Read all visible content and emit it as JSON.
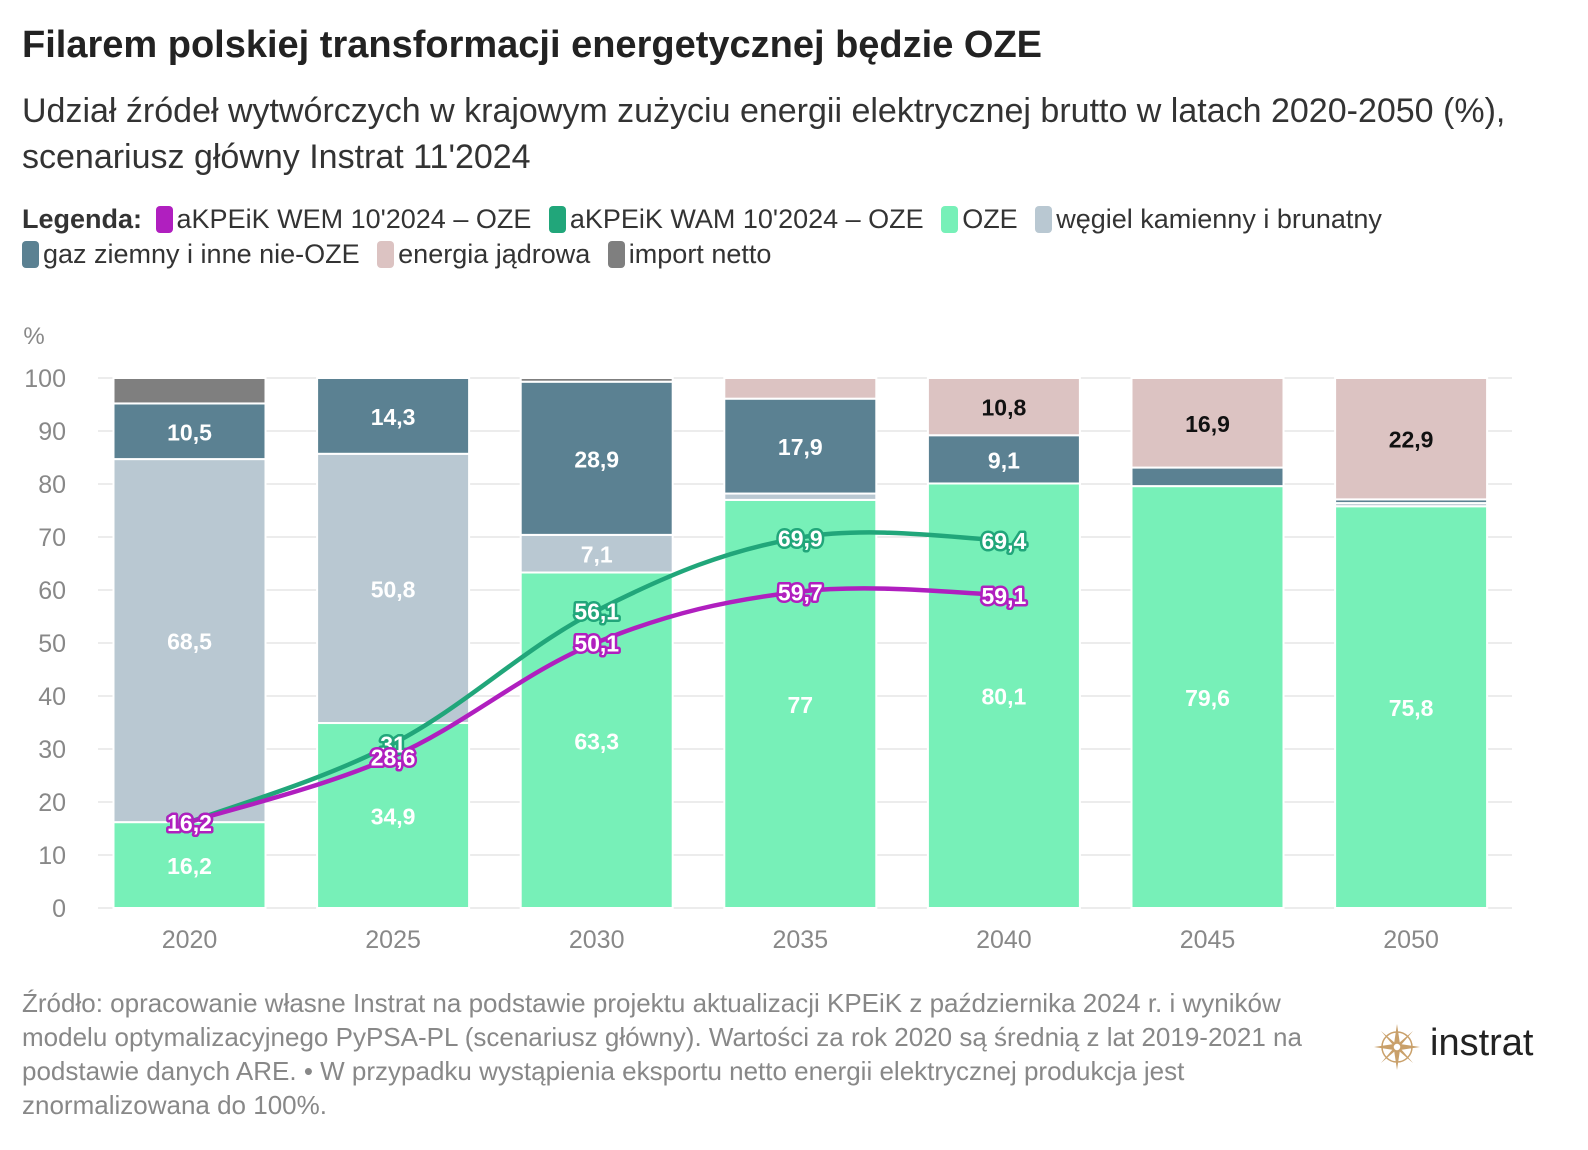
{
  "title": "Filarem polskiej transformacji energetycznej będzie OZE",
  "subtitle": "Udział źródeł wytwórczych w krajowym zużyciu energii elektrycznej brutto w latach 2020-2050 (%), scenariusz główny Instrat 11'2024",
  "legend": {
    "title": "Legenda:",
    "items": [
      {
        "label": "aKPEiK WEM 10'2024 – OZE",
        "color": "#b01fbf"
      },
      {
        "label": "aKPEiK WAM 10'2024 – OZE",
        "color": "#21a67a"
      },
      {
        "label": "OZE",
        "color": "#77f0b8"
      },
      {
        "label": "węgiel kamienny i brunatny",
        "color": "#b9c8d2"
      },
      {
        "label": "gaz ziemny i inne nie-OZE",
        "color": "#5b8192"
      },
      {
        "label": "energia jądrowa",
        "color": "#dcc3c2"
      },
      {
        "label": "import netto",
        "color": "#7f7f7f"
      }
    ]
  },
  "source": "Źródło: opracowanie własne Instrat na podstawie projektu aktualizacji KPEiK z października 2024 r. i wyników modelu optymalizacyjnego PyPSA-PL (scenariusz główny). Wartości za rok 2020 są średnią z lat 2019-2021 na podstawie danych ARE. • W przypadku wystąpienia eksportu netto energii elektrycznej produkcja jest znormalizowana do 100%.",
  "logo": {
    "text": "instrat",
    "icon": "compass-rose-icon"
  },
  "chart_data": {
    "type": "bar",
    "stacked": true,
    "ylabel": "%",
    "ylim": [
      0,
      100
    ],
    "yticks": [
      0,
      10,
      20,
      30,
      40,
      50,
      60,
      70,
      80,
      90,
      100
    ],
    "grid": true,
    "categories": [
      "2020",
      "2025",
      "2030",
      "2035",
      "2040",
      "2045",
      "2050"
    ],
    "series": [
      {
        "name": "OZE",
        "color": "#77f0b8",
        "label_color": "#ffffff",
        "values": [
          16.2,
          34.9,
          63.3,
          77,
          80.1,
          79.6,
          75.8
        ],
        "labels": [
          "16,2",
          "34,9",
          "63,3",
          "77",
          "80,1",
          "79,6",
          "75,8"
        ]
      },
      {
        "name": "węgiel kamienny i brunatny",
        "color": "#b9c8d2",
        "label_color": "#ffffff",
        "values": [
          68.5,
          50.8,
          7.1,
          1.2,
          0,
          0,
          0.6
        ],
        "labels": [
          "68,5",
          "50,8",
          "7,1",
          "",
          "",
          "",
          ""
        ]
      },
      {
        "name": "gaz ziemny i inne nie-OZE",
        "color": "#5b8192",
        "label_color": "#ffffff",
        "values": [
          10.5,
          14.3,
          28.9,
          17.9,
          9.1,
          3.5,
          0.7
        ],
        "labels": [
          "10,5",
          "14,3",
          "28,9",
          "17,9",
          "9,1",
          "",
          ""
        ]
      },
      {
        "name": "energia jądrowa",
        "color": "#dcc3c2",
        "label_color": "#111111",
        "values": [
          0,
          0,
          0,
          3.9,
          10.8,
          16.9,
          22.9
        ],
        "labels": [
          "",
          "",
          "",
          "",
          "10,8",
          "16,9",
          "22,9"
        ]
      },
      {
        "name": "import netto",
        "color": "#7f7f7f",
        "label_color": "#ffffff",
        "values": [
          4.8,
          0,
          0.7,
          0,
          0,
          0,
          0
        ],
        "labels": [
          "",
          "",
          "",
          "",
          "",
          "",
          ""
        ]
      }
    ],
    "lines": [
      {
        "name": "aKPEiK WAM 10'2024 – OZE",
        "color": "#21a67a",
        "x": [
          "2020",
          "2025",
          "2030",
          "2035",
          "2040"
        ],
        "values": [
          16.2,
          31,
          56.1,
          69.9,
          69.4
        ],
        "labels": [
          "16,2",
          "31",
          "56,1",
          "69,9",
          "69,4"
        ]
      },
      {
        "name": "aKPEiK WEM 10'2024 – OZE",
        "color": "#b01fbf",
        "x": [
          "2020",
          "2025",
          "2030",
          "2035",
          "2040"
        ],
        "values": [
          16.2,
          28.6,
          50.1,
          59.7,
          59.1
        ],
        "labels": [
          "16,2",
          "28,6",
          "50,1",
          "59,7",
          "59,1"
        ]
      }
    ]
  }
}
